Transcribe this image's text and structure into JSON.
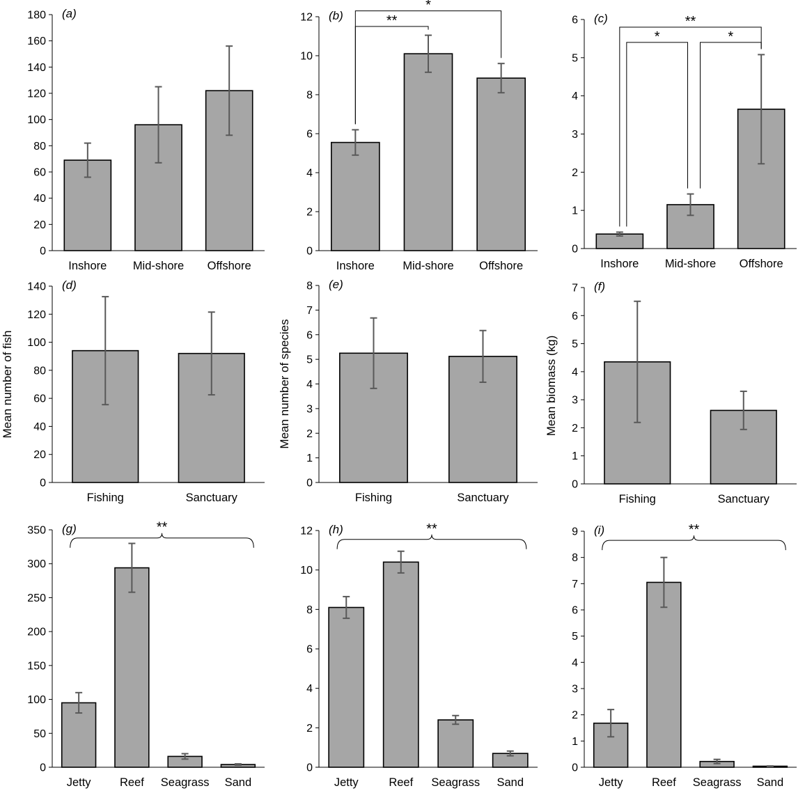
{
  "colors": {
    "bar_fill": "#a6a6a6",
    "bar_stroke": "#000000",
    "error_bar": "#595959"
  },
  "chart_data": [
    {
      "id": "a",
      "type": "bar",
      "panel_label": "(a)",
      "ylabel": "",
      "categories": [
        "Inshore",
        "Mid-shore",
        "Offshore"
      ],
      "values": [
        69,
        96,
        122
      ],
      "errors": [
        13,
        29,
        34
      ],
      "ylim": [
        0,
        180
      ],
      "yticks": [
        0,
        20,
        40,
        60,
        80,
        100,
        120,
        140,
        160,
        180
      ],
      "annotations": []
    },
    {
      "id": "b",
      "type": "bar",
      "panel_label": "(b)",
      "ylabel": "",
      "categories": [
        "Inshore",
        "Mid-shore",
        "Offshore"
      ],
      "values": [
        5.55,
        10.1,
        8.85
      ],
      "errors": [
        0.65,
        0.95,
        0.75
      ],
      "ylim": [
        0,
        12
      ],
      "yticks": [
        0,
        2,
        4,
        6,
        8,
        10,
        12
      ],
      "annotations": [
        {
          "kind": "bracket",
          "from": 0,
          "to": 1,
          "level": 11.5,
          "label": "**"
        },
        {
          "kind": "bracket",
          "from": 0,
          "to": 2,
          "level": 12.3,
          "label": "*"
        }
      ]
    },
    {
      "id": "c",
      "type": "bar",
      "panel_label": "(c)",
      "ylabel": "",
      "categories": [
        "Inshore",
        "Mid-shore",
        "Offshore"
      ],
      "values": [
        0.38,
        1.15,
        3.65
      ],
      "errors": [
        0.05,
        0.28,
        1.43
      ],
      "ylim": [
        0,
        6
      ],
      "yticks": [
        0,
        1,
        2,
        3,
        4,
        5,
        6
      ],
      "annotations": [
        {
          "kind": "bracket",
          "from": 0,
          "to": 2,
          "level": 5.8,
          "label": "**"
        },
        {
          "kind": "bracket",
          "from": 0,
          "to": 1,
          "level": 5.4,
          "label": "*"
        },
        {
          "kind": "bracket",
          "from": 1,
          "to": 2,
          "level": 5.4,
          "label": "*"
        }
      ]
    },
    {
      "id": "d",
      "type": "bar",
      "panel_label": "(d)",
      "ylabel": "Mean number of fish",
      "categories": [
        "Fishing",
        "Sanctuary"
      ],
      "values": [
        94,
        92
      ],
      "errors": [
        38.5,
        29.5
      ],
      "ylim": [
        0,
        140
      ],
      "yticks": [
        0,
        20,
        40,
        60,
        80,
        100,
        120,
        140
      ],
      "annotations": []
    },
    {
      "id": "e",
      "type": "bar",
      "panel_label": "(e)",
      "ylabel": "Mean number of species",
      "categories": [
        "Fishing",
        "Sanctuary"
      ],
      "values": [
        5.25,
        5.12
      ],
      "errors": [
        1.43,
        1.05
      ],
      "ylim": [
        0,
        8
      ],
      "yticks": [
        0,
        1,
        2,
        3,
        4,
        5,
        6,
        7,
        8
      ],
      "annotations": []
    },
    {
      "id": "f",
      "type": "bar",
      "panel_label": "(f)",
      "ylabel": "Mean biomass (kg)",
      "categories": [
        "Fishing",
        "Sanctuary"
      ],
      "values": [
        4.35,
        2.62
      ],
      "errors": [
        2.16,
        0.68
      ],
      "ylim": [
        0,
        7
      ],
      "yticks": [
        0,
        1,
        2,
        3,
        4,
        5,
        6,
        7
      ],
      "annotations": []
    },
    {
      "id": "g",
      "type": "bar",
      "panel_label": "(g)",
      "ylabel": "",
      "categories": [
        "Jetty",
        "Reef",
        "Seagrass",
        "Sand"
      ],
      "values": [
        95,
        294,
        16,
        4
      ],
      "errors": [
        15,
        36,
        4,
        1
      ],
      "ylim": [
        0,
        350
      ],
      "yticks": [
        0,
        50,
        100,
        150,
        200,
        250,
        300,
        350
      ],
      "annotations": [
        {
          "kind": "brace",
          "from": 0,
          "to": 3,
          "level": 338,
          "label": "**"
        }
      ]
    },
    {
      "id": "h",
      "type": "bar",
      "panel_label": "(h)",
      "ylabel": "",
      "categories": [
        "Jetty",
        "Reef",
        "Seagrass",
        "Sand"
      ],
      "values": [
        8.1,
        10.4,
        2.4,
        0.7
      ],
      "errors": [
        0.55,
        0.55,
        0.22,
        0.12
      ],
      "ylim": [
        0,
        12
      ],
      "yticks": [
        0,
        2,
        4,
        6,
        8,
        10,
        12
      ],
      "annotations": [
        {
          "kind": "brace",
          "from": 0,
          "to": 3,
          "level": 11.55,
          "label": "**"
        }
      ]
    },
    {
      "id": "i",
      "type": "bar",
      "panel_label": "(i)",
      "ylabel": "",
      "categories": [
        "Jetty",
        "Reef",
        "Seagrass",
        "Sand"
      ],
      "values": [
        1.68,
        7.05,
        0.22,
        0.04
      ],
      "errors": [
        0.52,
        0.95,
        0.08,
        0.01
      ],
      "ylim": [
        0,
        9
      ],
      "yticks": [
        0,
        1,
        2,
        3,
        4,
        5,
        6,
        7,
        8,
        9
      ],
      "annotations": [
        {
          "kind": "brace",
          "from": 0,
          "to": 3,
          "level": 8.65,
          "label": "**"
        }
      ]
    }
  ]
}
